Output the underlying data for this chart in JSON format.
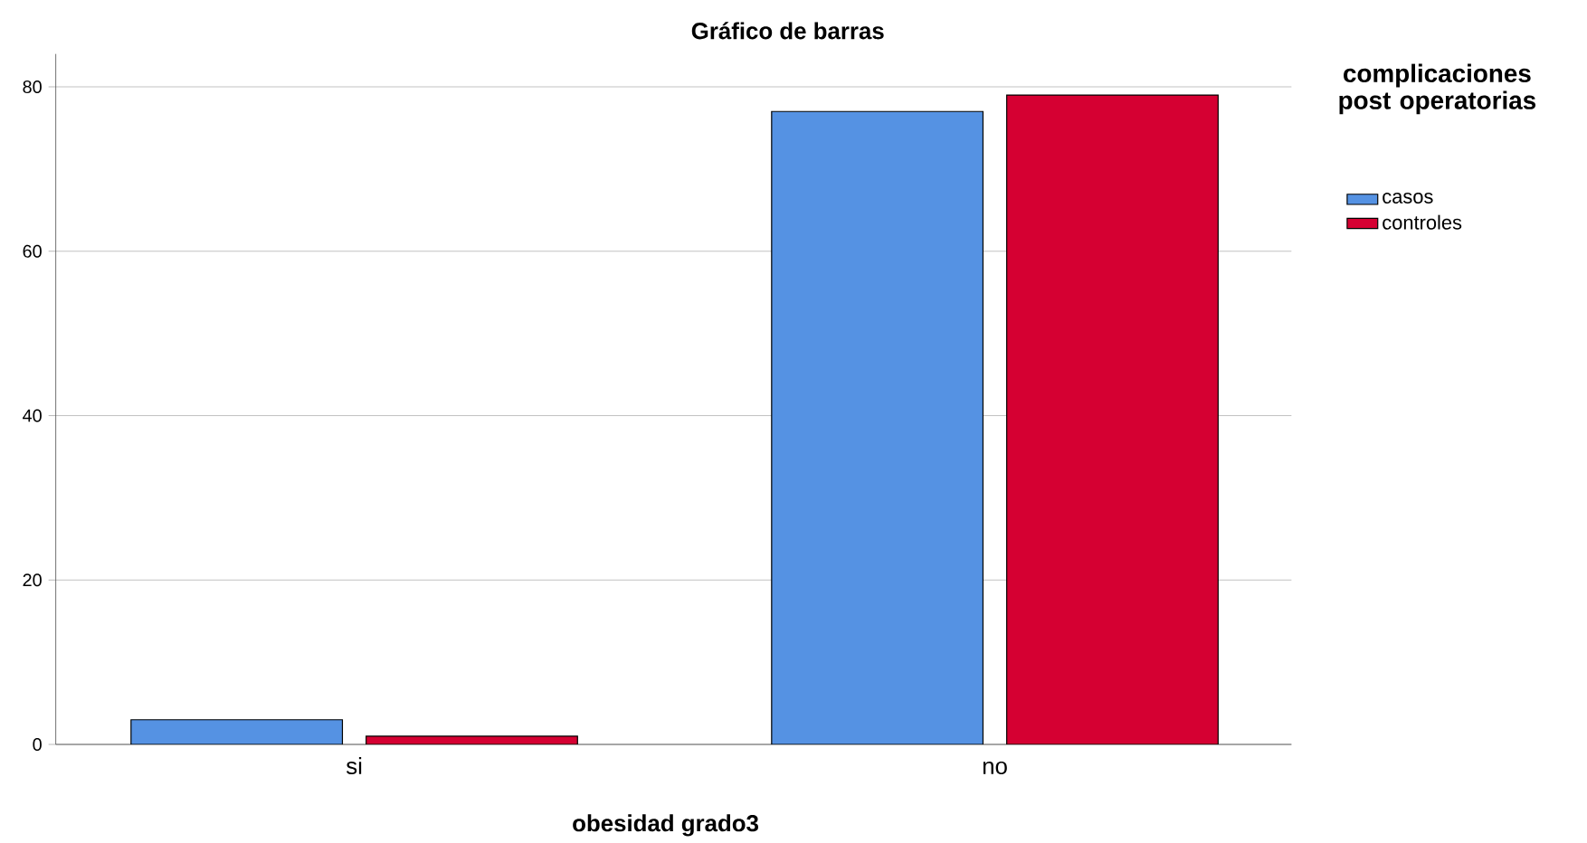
{
  "chart_data": {
    "type": "bar",
    "title": "Gráfico de barras",
    "xlabel": "obesidad grado3",
    "legend_title": "complicaciones post operatorias",
    "categories": [
      "si",
      "no"
    ],
    "series": [
      {
        "name": "casos",
        "color": "#5592e3",
        "values": [
          3,
          77
        ]
      },
      {
        "name": "controles",
        "color": "#d50032",
        "values": [
          1,
          79
        ]
      }
    ],
    "ylim": [
      0,
      84
    ],
    "yticks": [
      0,
      20,
      40,
      60,
      80
    ],
    "grid": "y",
    "legend": "top right"
  }
}
